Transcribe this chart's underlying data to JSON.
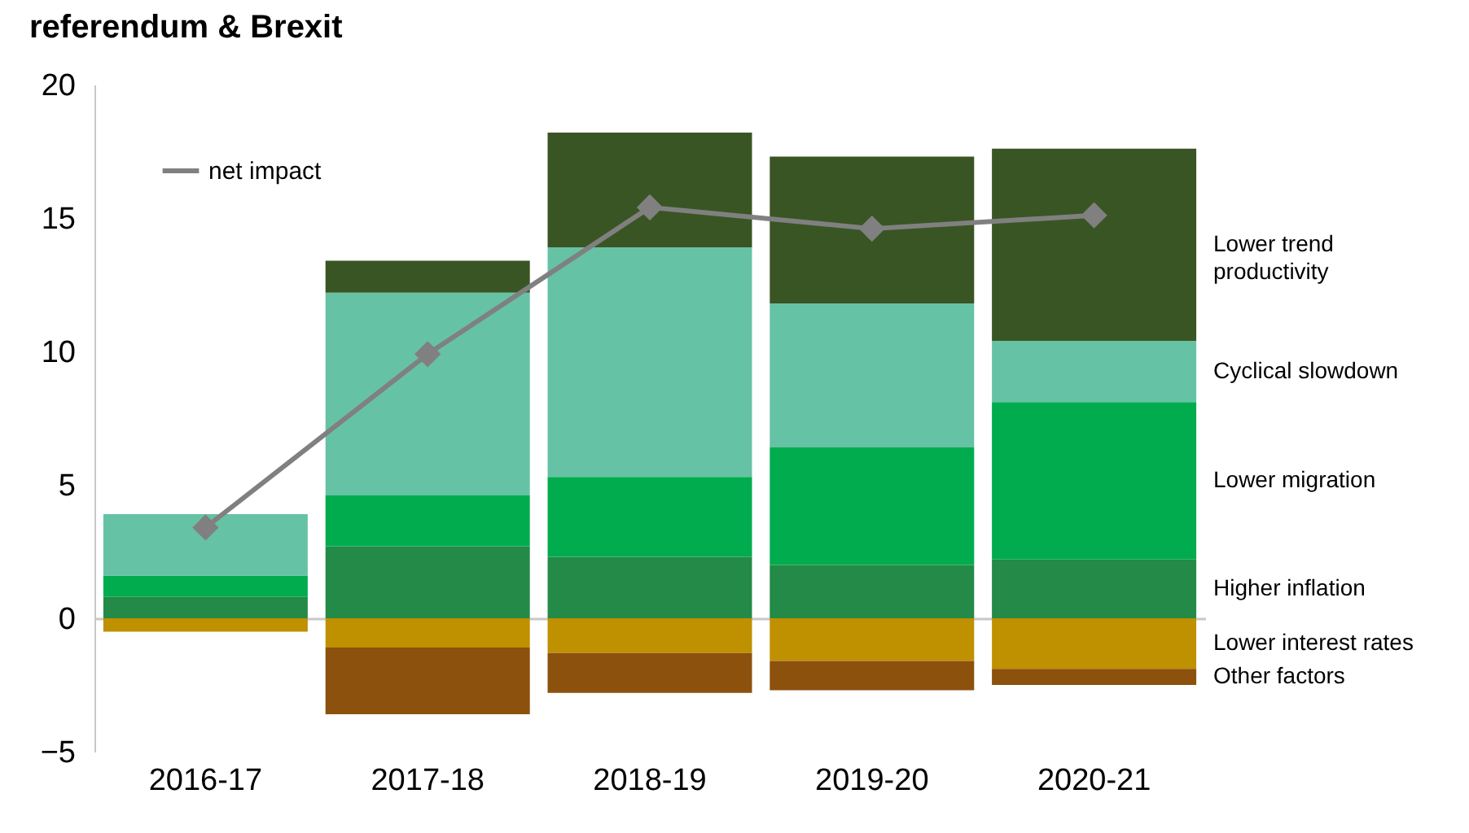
{
  "chart_data": {
    "type": "bar",
    "title": "referendum & Brexit",
    "stacked": true,
    "categories": [
      "2016-17",
      "2017-18",
      "2018-19",
      "2019-20",
      "2020-21"
    ],
    "series": [
      {
        "name": "Higher inflation",
        "color": "#238a48",
        "values": [
          0.8,
          2.7,
          2.3,
          2.0,
          2.2
        ]
      },
      {
        "name": "Lower migration",
        "color": "#00ac4e",
        "values": [
          0.8,
          1.9,
          3.0,
          4.4,
          5.9
        ]
      },
      {
        "name": "Cyclical slowdown",
        "color": "#66c2a5",
        "values": [
          2.3,
          7.6,
          8.6,
          5.4,
          2.3
        ]
      },
      {
        "name": "Lower trend productivity",
        "color": "#3a5524",
        "values": [
          0,
          1.2,
          4.3,
          5.5,
          7.2
        ]
      },
      {
        "name": "Lower interest rates",
        "color": "#bf9000",
        "values": [
          -0.5,
          -1.1,
          -1.3,
          -1.6,
          -1.9
        ]
      },
      {
        "name": "Other factors",
        "color": "#8b510d",
        "values": [
          0,
          -2.5,
          -1.5,
          -1.1,
          -0.6
        ]
      },
      {
        "name": "net impact",
        "type": "line",
        "color": "#808080",
        "values": [
          3.4,
          9.9,
          15.4,
          14.6,
          15.1
        ]
      }
    ],
    "ylim": [
      -5,
      20
    ],
    "yticks": [
      -5,
      0,
      5,
      10,
      15,
      20
    ],
    "legend": "top left",
    "marker": "diamond"
  }
}
